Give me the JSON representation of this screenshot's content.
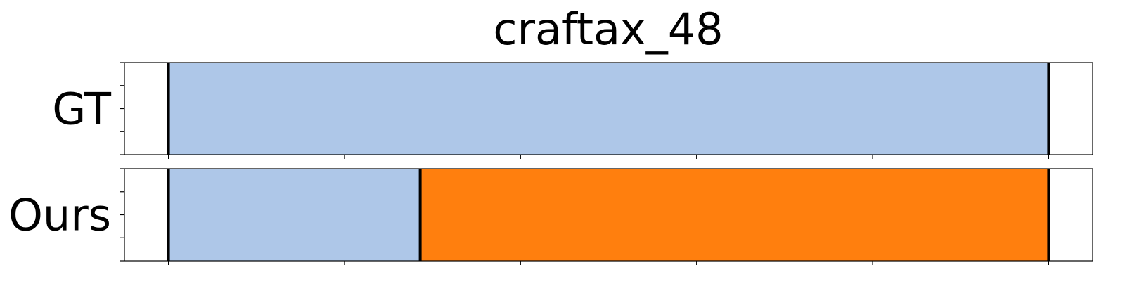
{
  "chart_data": {
    "type": "bar",
    "orientation": "horizontal-segments",
    "title": "craftax_48",
    "xlabel": "",
    "ylabel": "",
    "x_range": [
      -0.05,
      1.05
    ],
    "x_ticks": [
      0,
      0.2,
      0.4,
      0.6,
      0.8,
      1.0
    ],
    "y_ticks_per_row": 5,
    "grid": false,
    "legend": "none",
    "rows": [
      {
        "label": "GT",
        "segments": [
          {
            "start": 0.0,
            "end": 1.0,
            "color": "#aec7e8"
          }
        ],
        "boundaries": [
          0.0,
          1.0
        ]
      },
      {
        "label": "Ours",
        "segments": [
          {
            "start": 0.0,
            "end": 0.286,
            "color": "#aec7e8"
          },
          {
            "start": 0.286,
            "end": 1.0,
            "color": "#ff7f0e"
          }
        ],
        "boundaries": [
          0.0,
          0.286,
          1.0
        ]
      }
    ]
  }
}
